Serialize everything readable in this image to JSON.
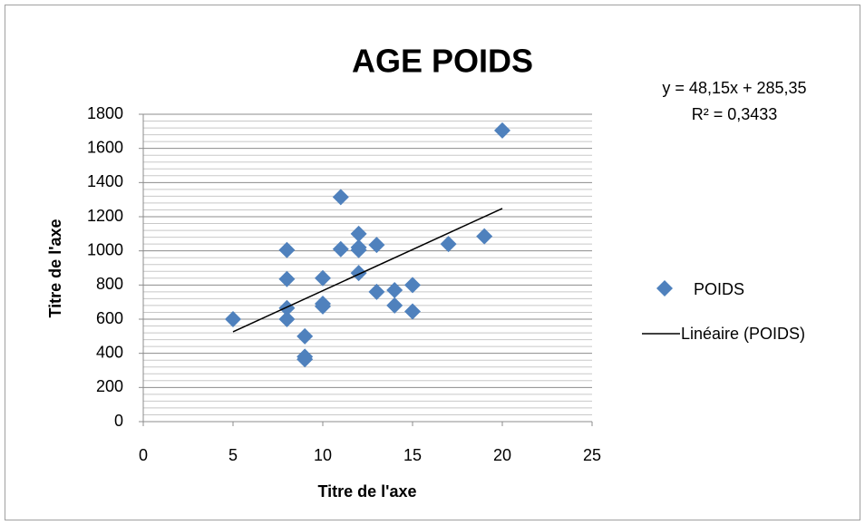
{
  "chart_data": {
    "type": "scatter",
    "title": "AGE POIDS",
    "x_label": "Titre de l'axe",
    "y_label": "Titre de l'axe",
    "series": [
      {
        "name": "POIDS",
        "color": "#4f81bd",
        "x": [
          5,
          8,
          8,
          8,
          8,
          9,
          9,
          9,
          10,
          10,
          10,
          11,
          11,
          12,
          12,
          12,
          12,
          13,
          13,
          14,
          14,
          15,
          15,
          17,
          19,
          20
        ],
        "values": [
          600,
          1005,
          835,
          665,
          600,
          500,
          380,
          365,
          840,
          690,
          675,
          1315,
          1010,
          1100,
          1020,
          1005,
          870,
          1035,
          760,
          770,
          680,
          800,
          645,
          1040,
          1085,
          1705
        ]
      }
    ],
    "trendline": {
      "name": "Linéaire (POIDS)",
      "color": "#000000",
      "slope": 48.15,
      "intercept": 285.35,
      "equation": "y = 48,15x + 285,35",
      "r_squared_label": "R² = 0,3433"
    },
    "xlim": [
      0,
      25
    ],
    "xticks": [
      0,
      5,
      10,
      15,
      20,
      25
    ],
    "ylim": [
      0,
      1800
    ],
    "yticks": [
      0,
      200,
      400,
      600,
      800,
      1000,
      1200,
      1400,
      1600,
      1800
    ],
    "grid": true,
    "minor_grid_per_major": 5,
    "legend": "right"
  }
}
